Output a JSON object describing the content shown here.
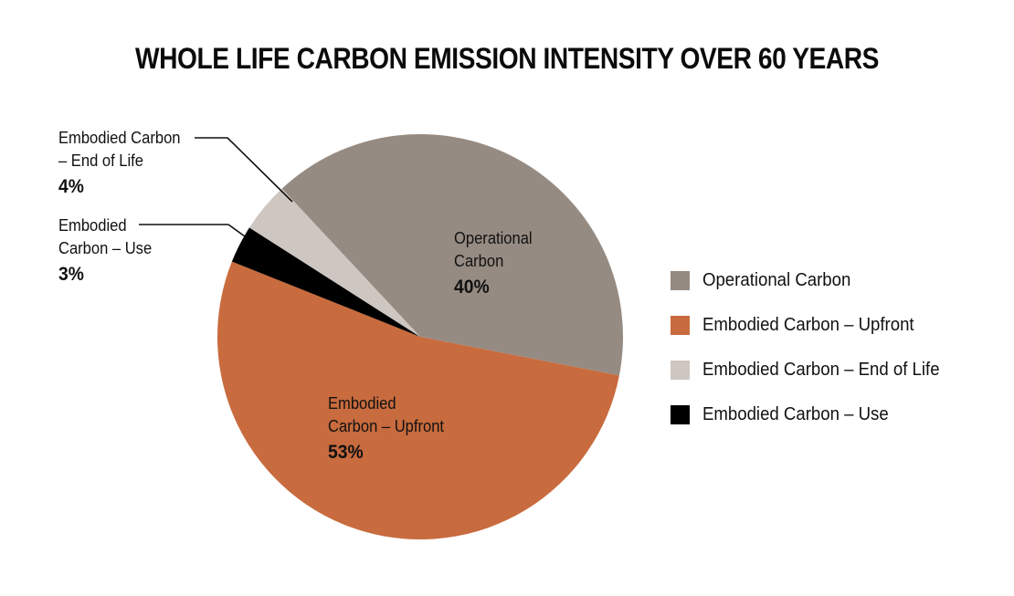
{
  "chart_data": {
    "type": "pie",
    "title": "WHOLE LIFE CARBON EMISSION INTENSITY OVER 60 YEARS",
    "categories": [
      "Operational Carbon",
      "Embodied Carbon – Upfront",
      "Embodied Carbon – End of Life",
      "Embodied Carbon – Use"
    ],
    "values": [
      40,
      53,
      4,
      3
    ],
    "unit": "%",
    "colors": {
      "Operational Carbon": "#968b82",
      "Embodied Carbon – Upfront": "#c86b3e",
      "Embodied Carbon – End of Life": "#cdc6c1",
      "Embodied Carbon – Use": "#000000"
    },
    "legend_position": "right",
    "slice_order_clockwise": [
      "Operational Carbon",
      "Embodied Carbon – Upfront",
      "Embodied Carbon – Use",
      "Embodied Carbon – End of Life"
    ]
  },
  "title": "WHOLE LIFE CARBON EMISSION INTENSITY OVER 60 YEARS",
  "labels": {
    "operational": {
      "line1": "Operational",
      "line2": "Carbon",
      "pct": "40%"
    },
    "upfront": {
      "line1": "Embodied",
      "line2": "Carbon – Upfront",
      "pct": "53%"
    },
    "end_of_life": {
      "line1": "Embodied Carbon",
      "line2": "– End of Life",
      "pct": "4%"
    },
    "use": {
      "line1": "Embodied",
      "line2": "Carbon – Use",
      "pct": "3%"
    }
  },
  "legend": {
    "items": [
      {
        "label": "Operational Carbon",
        "color": "#968b82"
      },
      {
        "label": "Embodied Carbon – Upfront",
        "color": "#c86b3e"
      },
      {
        "label": "Embodied Carbon – End of Life",
        "color": "#cdc6c1"
      },
      {
        "label": "Embodied Carbon – Use",
        "color": "#000000"
      }
    ]
  }
}
